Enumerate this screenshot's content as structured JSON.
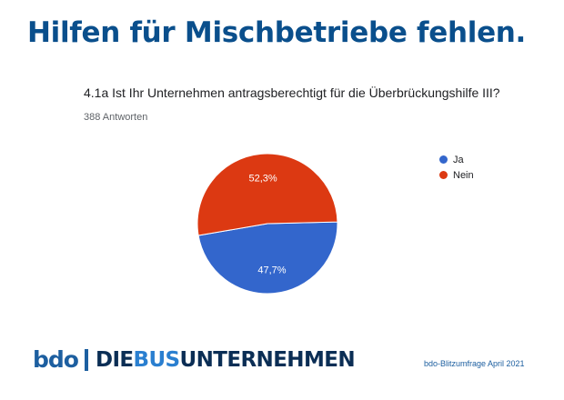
{
  "headline": "Hilfen für Mischbetriebe fehlen.",
  "question": "4.1a Ist Ihr Unternehmen antragsberechtigt für die Überbrückungshilfe III?",
  "responses": "388 Antworten",
  "chart_data": {
    "type": "pie",
    "categories": [
      "Ja",
      "Nein"
    ],
    "values": [
      47.7,
      52.3
    ],
    "labels": [
      "47,7%",
      "52,3%"
    ],
    "colors": [
      "#3366cc",
      "#dc3912"
    ],
    "legend_position": "right"
  },
  "footer": {
    "logo_bdo": "bdo",
    "logo_word_1": "DIE",
    "logo_word_2": "BUS",
    "logo_word_3": "UNTERNEHMEN",
    "source": "bdo-Blitzumfrage April 2021"
  }
}
